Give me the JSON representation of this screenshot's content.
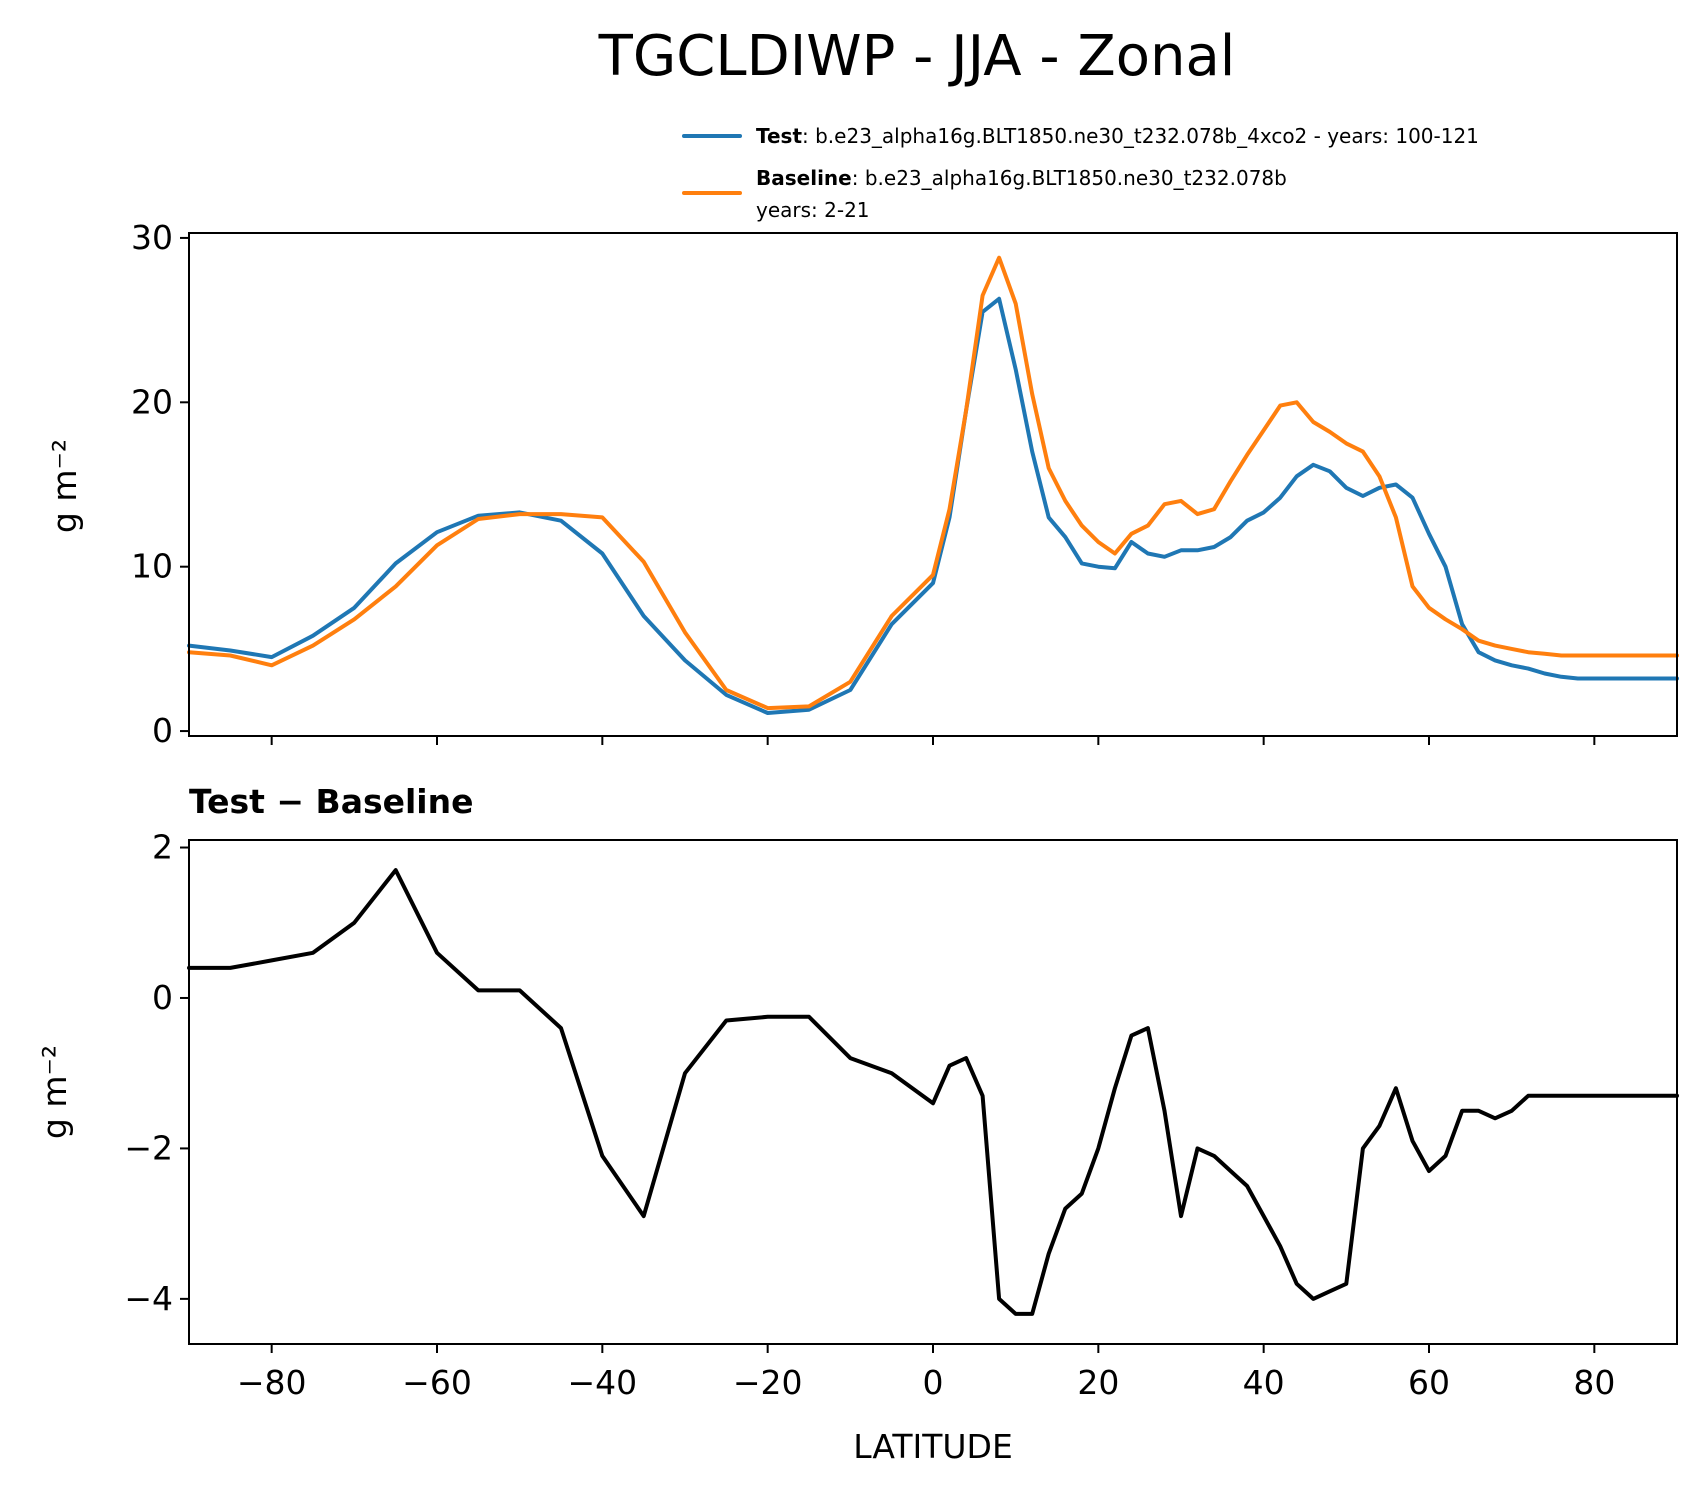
{
  "chart_data": {
    "type": "line",
    "title": "TGCLDIWP - JJA - Zonal",
    "legend": {
      "position": "top-right",
      "entries": [
        {
          "bold": "Test",
          "text": ": b.e23_alpha16g.BLT1850.ne30_t232.078b_4xco2 - years: 100-121",
          "color": "#1f77b4"
        },
        {
          "bold": "Baseline",
          "text": ": b.e23_alpha16g.BLT1850.ne30_t232.078b",
          "text2": "years: 2-21",
          "color": "#ff7f0e"
        }
      ]
    },
    "x": [
      -90,
      -85,
      -80,
      -75,
      -70,
      -65,
      -60,
      -55,
      -50,
      -45,
      -40,
      -35,
      -30,
      -25,
      -20,
      -15,
      -10,
      -5,
      0,
      2,
      4,
      6,
      8,
      10,
      12,
      14,
      16,
      18,
      20,
      22,
      24,
      26,
      28,
      30,
      32,
      34,
      36,
      38,
      40,
      42,
      44,
      46,
      48,
      50,
      52,
      54,
      56,
      58,
      60,
      62,
      64,
      66,
      68,
      70,
      72,
      74,
      76,
      78,
      80,
      82,
      84,
      86,
      88,
      90
    ],
    "panels": [
      {
        "ylabel": "g m⁻²",
        "ylim": [
          -0.3,
          30.3
        ],
        "yticks": [
          0,
          10,
          20,
          30
        ],
        "series": [
          {
            "name": "Test",
            "color": "#1f77b4",
            "values": [
              5.2,
              4.9,
              4.5,
              5.8,
              7.5,
              10.2,
              12.1,
              13.1,
              13.3,
              12.8,
              10.8,
              7.0,
              4.3,
              2.2,
              1.1,
              1.3,
              2.5,
              6.5,
              9.0,
              13.0,
              19.5,
              25.5,
              26.3,
              22.0,
              17.0,
              13.0,
              11.8,
              10.2,
              10.0,
              9.9,
              11.5,
              10.8,
              10.6,
              11.0,
              11.0,
              11.2,
              11.8,
              12.8,
              13.3,
              14.2,
              15.5,
              16.2,
              15.8,
              14.8,
              14.3,
              14.8,
              15.0,
              14.2,
              12.0,
              10.0,
              6.5,
              4.8,
              4.3,
              4.0,
              3.8,
              3.5,
              3.3,
              3.2,
              3.2,
              3.2,
              3.2,
              3.2,
              3.2,
              3.2
            ]
          },
          {
            "name": "Baseline",
            "color": "#ff7f0e",
            "values": [
              4.8,
              4.6,
              4.0,
              5.2,
              6.8,
              8.8,
              11.3,
              12.9,
              13.2,
              13.2,
              13.0,
              10.3,
              6.0,
              2.5,
              1.4,
              1.5,
              3.0,
              7.0,
              9.5,
              13.5,
              19.5,
              26.5,
              28.8,
              26.0,
              20.5,
              16.0,
              14.0,
              12.5,
              11.5,
              10.8,
              12.0,
              12.5,
              13.8,
              14.0,
              13.2,
              13.5,
              15.2,
              16.8,
              18.3,
              19.8,
              20.0,
              18.8,
              18.2,
              17.5,
              17.0,
              15.5,
              13.0,
              8.8,
              7.5,
              6.8,
              6.2,
              5.5,
              5.2,
              5.0,
              4.8,
              4.7,
              4.6,
              4.6,
              4.6,
              4.6,
              4.6,
              4.6,
              4.6,
              4.6
            ]
          }
        ]
      },
      {
        "title_bold": "Test − Baseline",
        "ylabel": "g m⁻²",
        "ylim": [
          -4.6,
          2.1
        ],
        "yticks": [
          -4,
          -2,
          0,
          2
        ],
        "series": [
          {
            "name": "Test - Baseline",
            "color": "#000000",
            "values": [
              0.4,
              0.4,
              0.5,
              0.6,
              1.0,
              1.7,
              0.6,
              0.1,
              0.1,
              -0.4,
              -2.1,
              -2.9,
              -1.0,
              -0.3,
              -0.25,
              -0.25,
              -0.8,
              -1.0,
              -1.4,
              -0.9,
              -0.8,
              -1.3,
              -4.0,
              -4.2,
              -4.2,
              -3.4,
              -2.8,
              -2.6,
              -2.0,
              -1.2,
              -0.5,
              -0.4,
              -1.5,
              -2.9,
              -2.0,
              -2.1,
              -2.3,
              -2.5,
              -2.9,
              -3.3,
              -3.8,
              -4.0,
              -3.9,
              -3.8,
              -2.0,
              -1.7,
              -1.2,
              -1.9,
              -2.3,
              -2.1,
              -1.5,
              -1.5,
              -1.6,
              -1.5,
              -1.3,
              -1.3,
              -1.3,
              -1.3,
              -1.3,
              -1.3,
              -1.3,
              -1.3,
              -1.3,
              -1.3
            ]
          }
        ]
      }
    ],
    "xlabel": "LATITUDE",
    "xlim": [
      -90,
      90
    ],
    "xticks": [
      -80,
      -60,
      -40,
      -20,
      0,
      20,
      40,
      60,
      80
    ]
  }
}
